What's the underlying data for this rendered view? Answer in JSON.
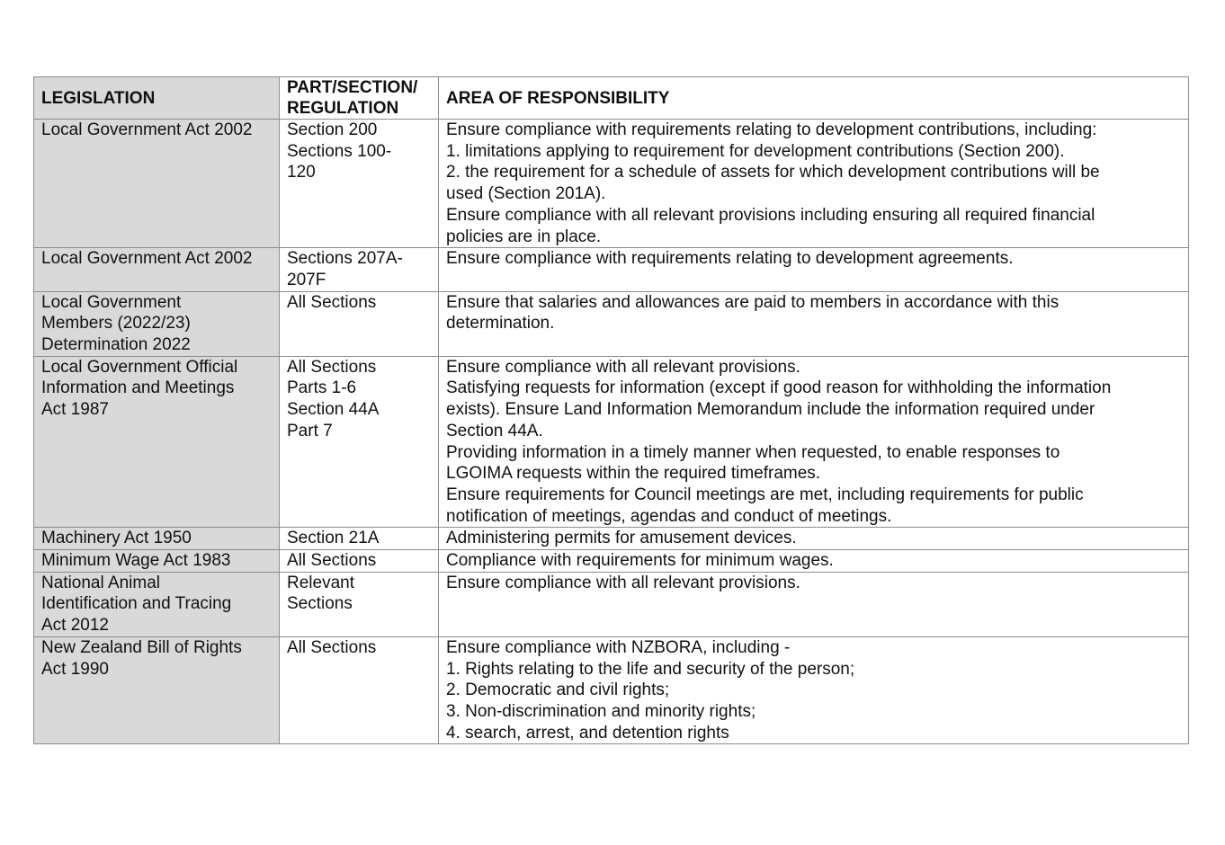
{
  "table": {
    "headers": [
      "LEGISLATION",
      "PART/SECTION/ REGULATION",
      "AREA OF RESPONSIBILITY"
    ],
    "rows": [
      {
        "legislation": [
          "Local Government Act 2002"
        ],
        "section": [
          "Section 200",
          "Sections 100-",
          "120"
        ],
        "area": [
          "Ensure compliance with requirements relating to development contributions, including:",
          "1. limitations applying to requirement for development contributions (Section 200).",
          "2. the requirement for a schedule of assets for which development contributions will be",
          "used (Section 201A).",
          "Ensure compliance with all relevant provisions including ensuring all required financial",
          "policies are in place."
        ]
      },
      {
        "legislation": [
          "Local Government Act 2002"
        ],
        "section": [
          "Sections 207A-",
          "207F"
        ],
        "area": [
          "Ensure compliance with requirements relating to development agreements."
        ]
      },
      {
        "legislation": [
          "Local Government",
          "Members (2022/23)",
          "Determination 2022"
        ],
        "section": [
          "All Sections"
        ],
        "area": [
          "Ensure that salaries and allowances are paid to members in accordance with this",
          "determination."
        ]
      },
      {
        "legislation": [
          "Local Government Official",
          "Information and Meetings",
          "Act 1987"
        ],
        "section": [
          "All Sections",
          "Parts 1-6",
          "Section 44A",
          "Part 7"
        ],
        "area": [
          "Ensure compliance with all relevant provisions.",
          "Satisfying requests for information (except if good reason for withholding the information",
          "exists). Ensure Land Information Memorandum include the information required under",
          "Section 44A.",
          "Providing information in a timely manner when requested, to enable responses to",
          "LGOIMA requests within the required timeframes.",
          "Ensure requirements for Council meetings are met, including requirements for public",
          "notification of meetings, agendas and conduct of meetings."
        ]
      },
      {
        "legislation": [
          "Machinery Act 1950"
        ],
        "section": [
          "Section 21A"
        ],
        "area": [
          "Administering permits for amusement devices."
        ]
      },
      {
        "legislation": [
          "Minimum Wage Act 1983"
        ],
        "section": [
          "All Sections"
        ],
        "area": [
          "Compliance with requirements for minimum wages."
        ]
      },
      {
        "legislation": [
          "National Animal",
          "Identification and Tracing",
          "Act 2012"
        ],
        "section": [
          "Relevant",
          "Sections"
        ],
        "area": [
          "Ensure compliance with all relevant provisions."
        ]
      },
      {
        "legislation": [
          "New Zealand Bill of Rights",
          "Act 1990"
        ],
        "section": [
          "All Sections"
        ],
        "area": [
          "Ensure compliance with NZBORA, including -",
          "1. Rights relating to the life and security of the person;",
          "2. Democratic and civil rights;",
          "3. Non-discrimination and minority rights;",
          "4. search, arrest, and detention rights"
        ]
      }
    ]
  }
}
